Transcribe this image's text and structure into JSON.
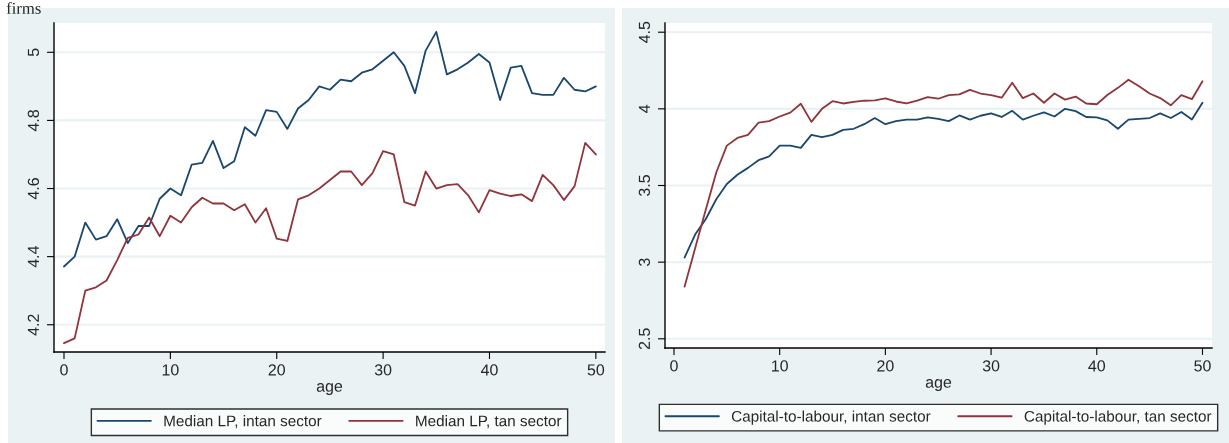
{
  "chart_data": [
    {
      "type": "line",
      "annotations": [
        "firms"
      ],
      "xlabel": "age",
      "xlim": [
        -0.94,
        50.86
      ],
      "xticks": [
        0,
        10,
        20,
        30,
        40,
        50
      ],
      "ylim": [
        4.12,
        5.086
      ],
      "yticks": [
        4.2,
        4.4,
        4.6,
        4.8,
        5
      ],
      "grid": "y",
      "legend": "bottom",
      "x": [
        0,
        1,
        2,
        3,
        4,
        5,
        6,
        7,
        8,
        9,
        10,
        11,
        12,
        13,
        14,
        15,
        16,
        17,
        18,
        19,
        20,
        21,
        22,
        23,
        24,
        25,
        26,
        27,
        28,
        29,
        30,
        31,
        32,
        33,
        34,
        35,
        36,
        37,
        38,
        39,
        40,
        41,
        42,
        43,
        44,
        45,
        46,
        47,
        48,
        49,
        50
      ],
      "series": [
        {
          "name": "Median LP, intan sector",
          "color": "#1a476f",
          "values": [
            4.371,
            4.4,
            4.5,
            4.45,
            4.46,
            4.51,
            4.44,
            4.49,
            4.49,
            4.57,
            4.6,
            4.58,
            4.67,
            4.675,
            4.74,
            4.66,
            4.68,
            4.78,
            4.755,
            4.83,
            4.825,
            4.775,
            4.835,
            4.86,
            4.9,
            4.89,
            4.92,
            4.915,
            4.94,
            4.95,
            4.975,
            5.0,
            4.96,
            4.88,
            5.005,
            5.06,
            4.935,
            4.95,
            4.97,
            4.995,
            4.97,
            4.86,
            4.955,
            4.96,
            4.88,
            4.875,
            4.875,
            4.925,
            4.89,
            4.885,
            4.9
          ]
        },
        {
          "name": "Median LP, tan sector",
          "color": "#90353b",
          "values": [
            4.146,
            4.16,
            4.3,
            4.31,
            4.33,
            4.39,
            4.455,
            4.465,
            4.515,
            4.46,
            4.52,
            4.5,
            4.545,
            4.573,
            4.556,
            4.556,
            4.536,
            4.554,
            4.5,
            4.542,
            4.453,
            4.446,
            4.568,
            4.58,
            4.6,
            4.625,
            4.65,
            4.65,
            4.61,
            4.645,
            4.71,
            4.7,
            4.56,
            4.55,
            4.65,
            4.6,
            4.61,
            4.613,
            4.58,
            4.53,
            4.595,
            4.585,
            4.578,
            4.583,
            4.563,
            4.64,
            4.61,
            4.566,
            4.607,
            4.734,
            4.7
          ]
        }
      ]
    },
    {
      "type": "line",
      "xlabel": "age",
      "xlim": [
        -0.85,
        50.9
      ],
      "xticks": [
        0,
        10,
        20,
        30,
        40,
        50
      ],
      "ylim": [
        2.44,
        4.56
      ],
      "yticks": [
        2.5,
        3,
        3.5,
        4,
        4.5
      ],
      "grid": "y",
      "legend": "bottom",
      "x": [
        1,
        2,
        3,
        4,
        5,
        6,
        7,
        8,
        9,
        10,
        11,
        12,
        13,
        14,
        15,
        16,
        17,
        18,
        19,
        20,
        21,
        22,
        23,
        24,
        25,
        26,
        27,
        28,
        29,
        30,
        31,
        32,
        33,
        34,
        35,
        36,
        37,
        38,
        39,
        40,
        41,
        42,
        43,
        44,
        45,
        46,
        47,
        48,
        49,
        50
      ],
      "series": [
        {
          "name": "Capital-to-labour, intan sector",
          "color": "#1a476f",
          "values": [
            3.03,
            3.18,
            3.28,
            3.41,
            3.51,
            3.57,
            3.615,
            3.665,
            3.69,
            3.76,
            3.76,
            3.745,
            3.83,
            3.815,
            3.83,
            3.863,
            3.87,
            3.9,
            3.94,
            3.9,
            3.92,
            3.93,
            3.93,
            3.945,
            3.935,
            3.92,
            3.957,
            3.93,
            3.955,
            3.97,
            3.947,
            3.987,
            3.93,
            3.955,
            3.977,
            3.95,
            4.0,
            3.985,
            3.947,
            3.945,
            3.925,
            3.87,
            3.93,
            3.935,
            3.94,
            3.97,
            3.94,
            3.98,
            3.93,
            4.04
          ]
        },
        {
          "name": "Capital-to-labour, tan sector",
          "color": "#90353b",
          "values": [
            2.84,
            3.09,
            3.34,
            3.585,
            3.76,
            3.81,
            3.83,
            3.91,
            3.92,
            3.95,
            3.975,
            4.033,
            3.915,
            4.0,
            4.05,
            4.035,
            4.045,
            4.053,
            4.055,
            4.068,
            4.048,
            4.035,
            4.053,
            4.076,
            4.066,
            4.09,
            4.094,
            4.124,
            4.1,
            4.09,
            4.073,
            4.17,
            4.07,
            4.1,
            4.04,
            4.1,
            4.06,
            4.08,
            4.035,
            4.03,
            4.09,
            4.137,
            4.19,
            4.147,
            4.1,
            4.07,
            4.023,
            4.09,
            4.063,
            4.18
          ]
        }
      ]
    }
  ]
}
